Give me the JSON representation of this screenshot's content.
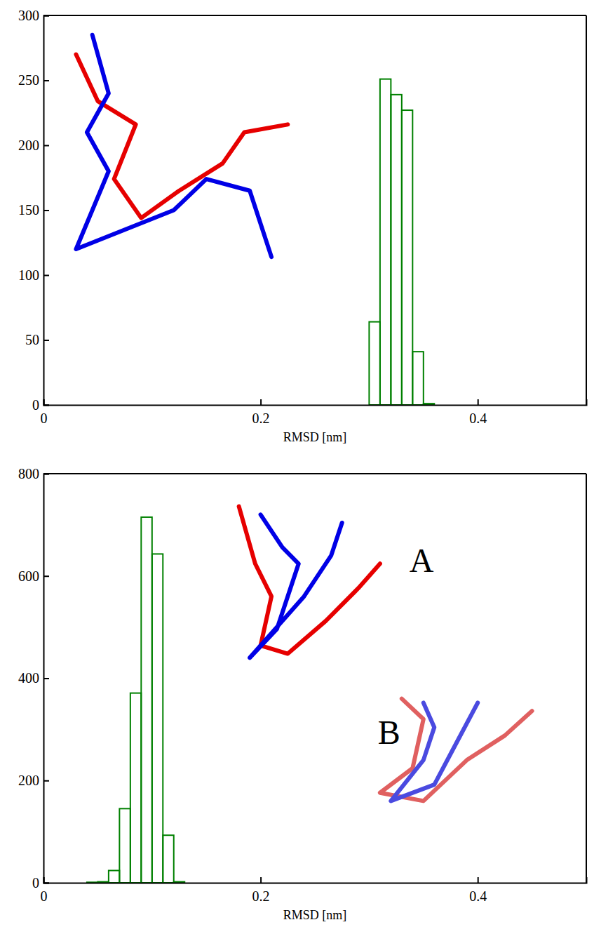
{
  "chart_data": [
    {
      "type": "histogram",
      "x_label": "RMSD [nm]",
      "bins": [
        0.3,
        0.31,
        0.32,
        0.33,
        0.34,
        0.35,
        0.36
      ],
      "values": [
        64,
        251,
        239,
        227,
        41,
        1
      ],
      "color": "#008000",
      "xlim": [
        0,
        0.5
      ],
      "xticks": [
        0,
        0.2,
        0.4
      ],
      "ylim": [
        0,
        300
      ],
      "yticks": [
        0,
        50,
        100,
        150,
        200,
        250,
        300
      ]
    },
    {
      "type": "histogram",
      "x_label": "RMSD [nm]",
      "bins": [
        0.04,
        0.05,
        0.06,
        0.07,
        0.08,
        0.09,
        0.1,
        0.11,
        0.12,
        0.13
      ],
      "values": [
        1,
        2,
        24,
        145,
        371,
        715,
        643,
        93,
        2
      ],
      "color": "#008000",
      "xlim": [
        0,
        0.5
      ],
      "xticks": [
        0,
        0.2,
        0.4
      ],
      "ylim": [
        0,
        800
      ],
      "yticks": [
        0,
        200,
        400,
        600,
        800
      ],
      "annotations": [
        "A",
        "B"
      ]
    }
  ]
}
